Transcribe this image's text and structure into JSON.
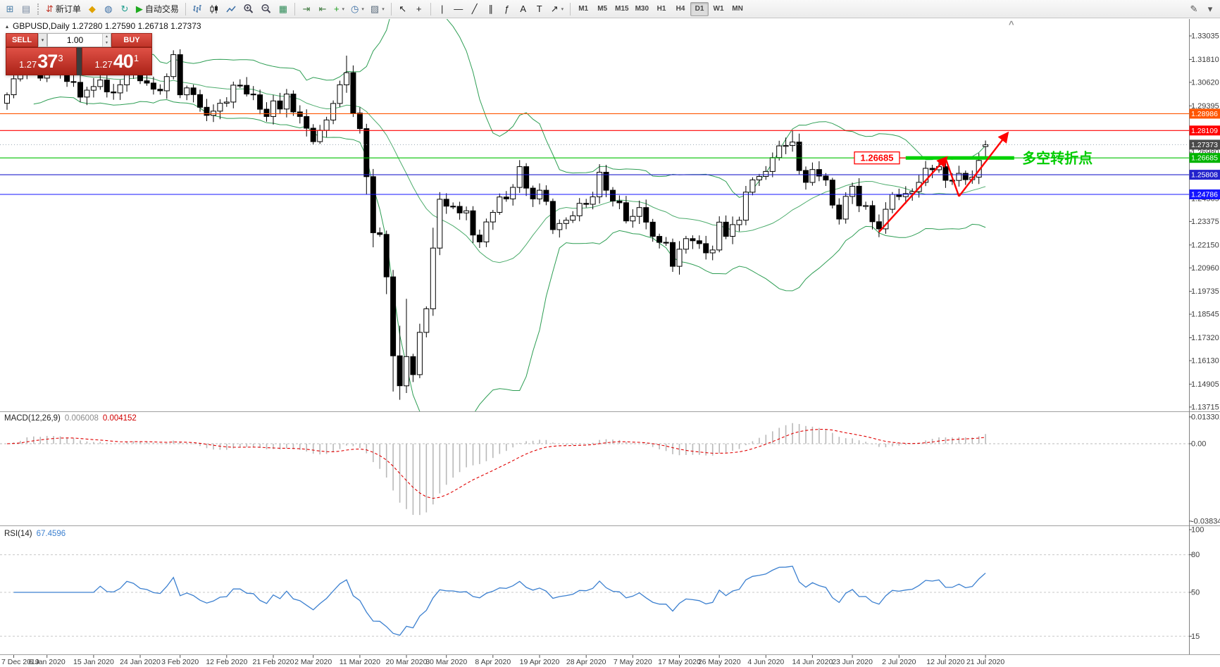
{
  "icons": {
    "symbol_marker": "▴",
    "chevron_up": "^",
    "pencil": "✎",
    "caret_down": "▾",
    "spin_up": "▲",
    "spin_down": "▼"
  },
  "toolbar": {
    "timeframes": [
      "M1",
      "M5",
      "M15",
      "M30",
      "H1",
      "H4",
      "D1",
      "W1",
      "MN"
    ],
    "active_timeframe": "D1",
    "items": [
      {
        "n": "new-chart",
        "g": "⊞",
        "c": "#4a7ea8"
      },
      {
        "n": "profiles",
        "g": "▤",
        "c": "#7a8aa0"
      },
      {
        "t": "grip"
      },
      {
        "n": "new-order",
        "g": "⇵",
        "c": "#c23b2e",
        "label": "新订单"
      },
      {
        "n": "market-watch",
        "g": "◆",
        "c": "#e0a200"
      },
      {
        "n": "data-window",
        "g": "◍",
        "c": "#3a6ea5"
      },
      {
        "n": "refresh",
        "g": "↻",
        "c": "#1f9e8e"
      },
      {
        "n": "autotrade",
        "g": "▶",
        "c": "#1faa1f",
        "label": "自动交易"
      },
      {
        "t": "sep"
      },
      {
        "n": "bar-chart",
        "svg": "bars"
      },
      {
        "n": "candlestick-chart",
        "svg": "candles"
      },
      {
        "n": "line-chart",
        "svg": "line"
      },
      {
        "n": "zoom-in",
        "svg": "zoomin"
      },
      {
        "n": "zoom-out",
        "svg": "zoomout"
      },
      {
        "n": "tile-windows",
        "g": "▦",
        "c": "#2e8b57"
      },
      {
        "t": "sep"
      },
      {
        "n": "auto-scroll",
        "g": "⇥",
        "c": "#417a41"
      },
      {
        "n": "chart-shift",
        "g": "⇤",
        "c": "#417a41"
      },
      {
        "n": "indicators",
        "g": "+",
        "c": "#1d9e1d",
        "dd": true
      },
      {
        "n": "periods",
        "g": "◷",
        "c": "#3a6ea5",
        "dd": true
      },
      {
        "n": "templates",
        "g": "▨",
        "c": "#5f6f7f",
        "dd": true
      },
      {
        "t": "sep"
      },
      {
        "n": "cursor",
        "g": "↖",
        "c": "#222"
      },
      {
        "n": "crosshair",
        "g": "+",
        "c": "#222"
      },
      {
        "t": "sep"
      },
      {
        "n": "vertical-line",
        "g": "|",
        "c": "#222"
      },
      {
        "n": "horizontal-line",
        "g": "—",
        "c": "#222"
      },
      {
        "n": "trendline",
        "g": "╱",
        "c": "#222"
      },
      {
        "n": "equidistant-channel",
        "g": "∥",
        "c": "#222"
      },
      {
        "n": "fibonacci",
        "g": "ƒ",
        "c": "#222"
      },
      {
        "n": "text",
        "g": "A",
        "c": "#222"
      },
      {
        "n": "text-label",
        "g": "T",
        "c": "#222"
      },
      {
        "n": "arrows",
        "g": "↗",
        "c": "#222",
        "dd": true
      },
      {
        "t": "sep"
      },
      {
        "t": "tf"
      },
      {
        "t": "flex"
      },
      {
        "n": "edit",
        "g": "✎",
        "c": "#555"
      },
      {
        "n": "more",
        "g": "▾",
        "c": "#555"
      }
    ]
  },
  "quote_panel": {
    "sell_label": "SELL",
    "buy_label": "BUY",
    "volume": "1.00",
    "sell_price": {
      "small": "1.27",
      "big": "37",
      "sup": "3"
    },
    "buy_price": {
      "small": "1.27",
      "big": "40",
      "sup": "1"
    }
  },
  "chart": {
    "symbol_info": "GBPUSD,Daily  1.27280 1.27590 1.26718 1.27373",
    "first_open": 1.2953,
    "wick": 0.003,
    "closes": [
      1.2997,
      1.308,
      1.3114,
      1.3257,
      1.3143,
      1.3084,
      1.3166,
      1.3122,
      1.3105,
      1.3066,
      1.3062,
      1.2985,
      1.3021,
      1.304,
      1.3074,
      1.3012,
      1.3007,
      1.3049,
      1.3141,
      1.3122,
      1.307,
      1.3058,
      1.3026,
      1.3018,
      1.3092,
      1.3206,
      1.2997,
      1.3033,
      1.2998,
      1.2932,
      1.289,
      1.2912,
      1.2953,
      1.2959,
      1.3047,
      1.3046,
      1.3001,
      1.2997,
      1.2922,
      1.2884,
      1.2965,
      1.2923,
      1.3001,
      1.2908,
      1.2884,
      1.2823,
      1.2753,
      1.2812,
      1.2866,
      1.2952,
      1.3049,
      1.3112,
      1.2902,
      1.2821,
      1.2571,
      1.2279,
      1.227,
      1.2049,
      1.1638,
      1.1482,
      1.1634,
      1.154,
      1.176,
      1.1883,
      1.2199,
      1.2453,
      1.2417,
      1.2416,
      1.2382,
      1.2393,
      1.2267,
      1.2231,
      1.2335,
      1.2385,
      1.2465,
      1.2455,
      1.2515,
      1.2623,
      1.2511,
      1.2455,
      1.25,
      1.2442,
      1.2295,
      1.2327,
      1.2344,
      1.2367,
      1.2432,
      1.2427,
      1.2466,
      1.2594,
      1.25,
      1.2444,
      1.2435,
      1.234,
      1.2364,
      1.241,
      1.2334,
      1.226,
      1.2229,
      1.2228,
      1.2104,
      1.2193,
      1.2248,
      1.2237,
      1.2222,
      1.2174,
      1.2189,
      1.2334,
      1.226,
      1.2321,
      1.2344,
      1.249,
      1.2554,
      1.2572,
      1.2598,
      1.267,
      1.2731,
      1.2733,
      1.2751,
      1.2603,
      1.2541,
      1.2608,
      1.2574,
      1.2553,
      1.2423,
      1.235,
      1.2468,
      1.2521,
      1.2419,
      1.242,
      1.2336,
      1.2299,
      1.2401,
      1.2478,
      1.2467,
      1.2483,
      1.2493,
      1.2541,
      1.2614,
      1.2607,
      1.2623,
      1.2552,
      1.2551,
      1.2588,
      1.2555,
      1.2568,
      1.2655,
      1.2737
    ],
    "overrides": {
      "3": {
        "h": 1.3285
      },
      "51": {
        "h": 1.3201
      },
      "54": {
        "l": 1.248
      },
      "55": {
        "l": 1.2203
      },
      "57": {
        "l": 1.1959,
        "h": 1.229
      },
      "58": {
        "h": 1.2085,
        "l": 1.1452
      },
      "59": {
        "l": 1.1409,
        "h": 1.1795
      },
      "60": {
        "h": 1.1935
      },
      "62": {
        "h": 1.1805
      },
      "64": {
        "h": 1.2305
      },
      "65": {
        "h": 1.249
      },
      "100": {
        "l": 1.2075
      },
      "118": {
        "h": 1.2812
      },
      "147": {
        "o": 1.2728,
        "h": 1.2759,
        "l": 1.2672
      }
    },
    "bollinger": {
      "period": 20,
      "deviation": 2,
      "color": "#2e9e54"
    },
    "hlines": [
      {
        "price": 1.28986,
        "color": "#ff5500"
      },
      {
        "price": 1.28109,
        "color": "#ff0000"
      },
      {
        "price": 1.26685,
        "color": "#00c000"
      },
      {
        "price": 1.25808,
        "color": "#2222cc"
      },
      {
        "price": 1.24786,
        "color": "#1414ff"
      }
    ],
    "current_price": {
      "text": "1.27373",
      "price": 1.27373,
      "line_color": "#9aa6b2"
    },
    "price_ticks": [
      "1.33035",
      "1.31810",
      "1.30620",
      "1.29395",
      "1.26980",
      "1.24565",
      "1.23375",
      "1.22150",
      "1.20960",
      "1.19735",
      "1.18545",
      "1.17320",
      "1.16130",
      "1.14905",
      "1.13715"
    ],
    "price_markers": [
      {
        "text": "1.28986",
        "price": 1.28986,
        "bg": "#ff5500"
      },
      {
        "text": "1.28109",
        "price": 1.28109,
        "bg": "#ff0000"
      },
      {
        "text": "1.27373",
        "price": 1.27373,
        "bg": "#4a4a4a"
      },
      {
        "text": "1.26685",
        "price": 1.26685,
        "bg": "#00b400"
      },
      {
        "text": "1.25808",
        "price": 1.25808,
        "bg": "#2222cc"
      },
      {
        "text": "1.24786",
        "price": 1.24786,
        "bg": "#1414ff"
      }
    ],
    "dates": [
      {
        "t": "7 Dec 2019",
        "i": 1
      },
      {
        "t": "6 Jan 2020",
        "i": 6
      },
      {
        "t": "15 Jan 2020",
        "i": 13
      },
      {
        "t": "24 Jan 2020",
        "i": 20
      },
      {
        "t": "3 Feb 2020",
        "i": 26
      },
      {
        "t": "12 Feb 2020",
        "i": 33
      },
      {
        "t": "21 Feb 2020",
        "i": 40
      },
      {
        "t": "2 Mar 2020",
        "i": 46
      },
      {
        "t": "11 Mar 2020",
        "i": 53
      },
      {
        "t": "20 Mar 2020",
        "i": 60
      },
      {
        "t": "30 Mar 2020",
        "i": 66
      },
      {
        "t": "8 Apr 2020",
        "i": 73
      },
      {
        "t": "19 Apr 2020",
        "i": 80
      },
      {
        "t": "28 Apr 2020",
        "i": 87
      },
      {
        "t": "7 May 2020",
        "i": 94
      },
      {
        "t": "17 May 2020",
        "i": 101
      },
      {
        "t": "26 May 2020",
        "i": 107
      },
      {
        "t": "4 Jun 2020",
        "i": 114
      },
      {
        "t": "14 Jun 2020",
        "i": 121
      },
      {
        "t": "23 Jun 2020",
        "i": 127
      },
      {
        "t": "2 Jul 2020",
        "i": 134
      },
      {
        "t": "12 Jul 2020",
        "i": 141
      },
      {
        "t": "21 Jul 2020",
        "i": 147
      }
    ]
  },
  "macd": {
    "name": "MACD(12,26,9)",
    "value": "0.006008",
    "signal": "0.004152",
    "histogram_color": "#b9b9b9",
    "signal_color": "#e00000",
    "scale": [
      {
        "t": "0.013301",
        "v": 0.013301
      },
      {
        "t": "0.00",
        "v": 0
      },
      {
        "t": "-0.038343",
        "v": -0.038343
      }
    ]
  },
  "rsi": {
    "name": "RSI(14)",
    "value": "67.4596",
    "color": "#3c80d0",
    "scale": [
      {
        "t": "100",
        "v": 100
      },
      {
        "t": "80",
        "v": 80
      },
      {
        "t": "50",
        "v": 50
      },
      {
        "t": "15",
        "v": 15
      }
    ],
    "levels": [
      80,
      50,
      15
    ]
  },
  "annotations": {
    "callout": {
      "text": "1.26685",
      "i": 127.3,
      "price": 1.26685,
      "color": "#ff0000"
    },
    "segment": {
      "price": 1.26685,
      "i1": 135,
      "i2": 151.3,
      "color": "#00d200",
      "width": 5
    },
    "note": {
      "text": "多空转折点",
      "i": 152.5,
      "price": 1.2668,
      "color": "#00cc00",
      "size": 20
    },
    "arrows": {
      "color": "#ff0000",
      "width": 2.4,
      "segs": [
        {
          "pts": [
            [
              131,
              1.2283
            ],
            [
              141,
              1.2665
            ]
          ],
          "head": true
        },
        {
          "pts": [
            [
              141,
              1.2665
            ],
            [
              143,
              1.2468
            ]
          ],
          "head": false
        },
        {
          "pts": [
            [
              143,
              1.2468
            ],
            [
              150.2,
              1.2792
            ]
          ],
          "head": true
        }
      ]
    }
  }
}
